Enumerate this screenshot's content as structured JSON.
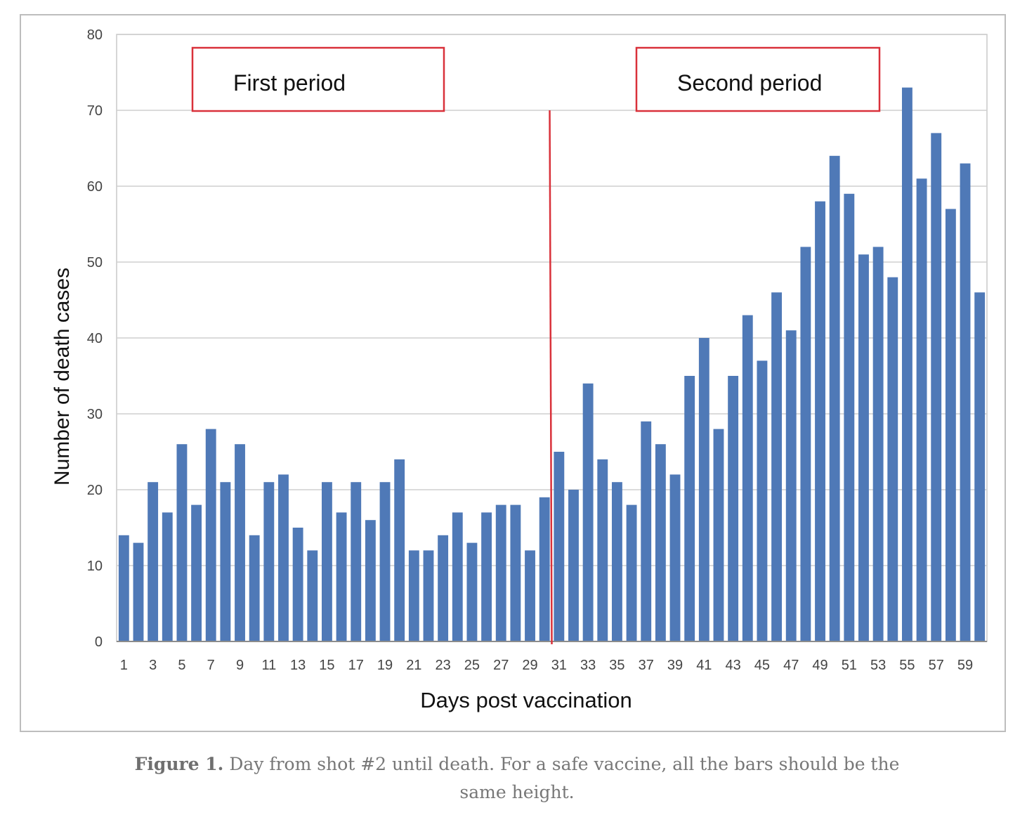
{
  "chart_data": {
    "type": "bar",
    "xlabel": "Days post vaccination",
    "ylabel": "Number of death cases",
    "ylim": [
      0,
      80
    ],
    "yticks": [
      0,
      10,
      20,
      30,
      40,
      50,
      60,
      70,
      80
    ],
    "x_tick_labels": [
      "1",
      "3",
      "5",
      "7",
      "9",
      "11",
      "13",
      "15",
      "17",
      "19",
      "21",
      "23",
      "25",
      "27",
      "29",
      "31",
      "33",
      "35",
      "37",
      "39",
      "41",
      "43",
      "45",
      "47",
      "49",
      "51",
      "53",
      "55",
      "57",
      "59"
    ],
    "categories": [
      1,
      2,
      3,
      4,
      5,
      6,
      7,
      8,
      9,
      10,
      11,
      12,
      13,
      14,
      15,
      16,
      17,
      18,
      19,
      20,
      21,
      22,
      23,
      24,
      25,
      26,
      27,
      28,
      29,
      30,
      31,
      32,
      33,
      34,
      35,
      36,
      37,
      38,
      39,
      40,
      41,
      42,
      43,
      44,
      45,
      46,
      47,
      48,
      49,
      50,
      51,
      52,
      53,
      54,
      55,
      56,
      57,
      58,
      59,
      60
    ],
    "values": [
      14,
      13,
      21,
      17,
      26,
      18,
      28,
      21,
      26,
      14,
      21,
      22,
      15,
      12,
      21,
      17,
      21,
      16,
      21,
      24,
      12,
      12,
      14,
      17,
      13,
      17,
      18,
      18,
      12,
      19,
      25,
      20,
      34,
      24,
      21,
      18,
      29,
      26,
      22,
      35,
      40,
      28,
      35,
      43,
      37,
      46,
      41,
      52,
      58,
      64,
      59,
      51,
      52,
      48,
      73,
      61,
      67,
      57,
      63,
      46
    ],
    "bar_color": "#4f79b7",
    "grid": true,
    "annotations": [
      {
        "text": "First period",
        "box_color": "#d9313a"
      },
      {
        "text": "Second period",
        "box_color": "#d9313a"
      }
    ],
    "divider": {
      "after_day": 30,
      "color": "#d9313a"
    }
  },
  "caption": {
    "label": "Figure 1.",
    "text": " Day from shot #2 until death. For a safe vaccine, all the bars should be the same height."
  }
}
